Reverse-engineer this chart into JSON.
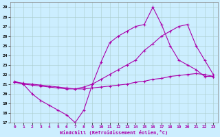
{
  "xlabel": "Windchill (Refroidissement éolien,°C)",
  "background_color": "#cceeff",
  "line_color": "#aa00aa",
  "xlim": [
    -0.5,
    23.5
  ],
  "ylim": [
    17,
    29.5
  ],
  "yticks": [
    17,
    18,
    19,
    20,
    21,
    22,
    23,
    24,
    25,
    26,
    27,
    28,
    29
  ],
  "xticks": [
    0,
    1,
    2,
    3,
    4,
    5,
    6,
    7,
    8,
    9,
    10,
    11,
    12,
    13,
    14,
    15,
    16,
    17,
    18,
    19,
    20,
    21,
    22,
    23
  ],
  "line1_x": [
    0,
    1,
    2,
    3,
    4,
    5,
    6,
    7,
    8,
    9,
    10,
    11,
    12,
    13,
    14,
    15,
    16,
    17,
    18,
    19,
    20,
    21,
    22,
    23
  ],
  "line1_y": [
    21.3,
    21.0,
    20.0,
    19.3,
    18.8,
    18.3,
    17.8,
    17.0,
    18.3,
    21.0,
    23.3,
    25.3,
    26.0,
    26.5,
    27.0,
    27.2,
    29.0,
    27.2,
    25.0,
    23.5,
    23.0,
    22.5,
    21.8,
    21.8
  ],
  "line2_x": [
    0,
    1,
    2,
    3,
    4,
    5,
    6,
    7,
    8,
    9,
    10,
    11,
    12,
    13,
    14,
    15,
    16,
    17,
    18,
    19,
    20,
    21,
    22,
    23
  ],
  "line2_y": [
    21.2,
    21.1,
    21.0,
    20.9,
    20.8,
    20.7,
    20.6,
    20.5,
    20.7,
    21.0,
    21.5,
    22.0,
    22.5,
    23.0,
    23.5,
    24.5,
    25.2,
    26.0,
    26.5,
    27.0,
    27.2,
    25.0,
    23.5,
    22.0
  ],
  "line3_x": [
    0,
    1,
    2,
    3,
    4,
    5,
    6,
    7,
    8,
    9,
    10,
    11,
    12,
    13,
    14,
    15,
    16,
    17,
    18,
    19,
    20,
    21,
    22,
    23
  ],
  "line3_y": [
    21.2,
    21.0,
    20.9,
    20.8,
    20.7,
    20.6,
    20.5,
    20.5,
    20.5,
    20.6,
    20.7,
    20.8,
    20.9,
    21.0,
    21.2,
    21.3,
    21.5,
    21.6,
    21.8,
    21.9,
    22.0,
    22.1,
    22.0,
    21.8
  ]
}
